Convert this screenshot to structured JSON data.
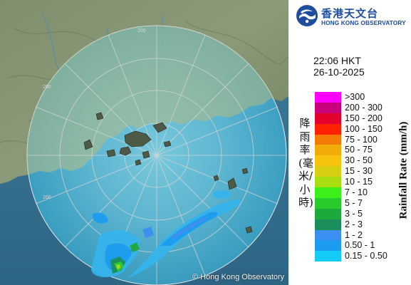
{
  "logo": {
    "name_zh": "香港天文台",
    "name_en": "HONG KONG OBSERVATORY",
    "brand_color": "#1e4da0"
  },
  "timestamp": {
    "time": "22:06 HKT",
    "date": "26-10-2025"
  },
  "legend": {
    "title_zh": "降雨率(毫米/小時)",
    "title_en": "Rainfall Rate (mm/h)",
    "items": [
      {
        "label": ">300",
        "color": "#ff00ff"
      },
      {
        "label": "200 - 300",
        "color": "#c8007c"
      },
      {
        "label": "150 - 200",
        "color": "#e4002d"
      },
      {
        "label": "100 - 150",
        "color": "#ff2200"
      },
      {
        "label": "75 - 100",
        "color": "#f37a05"
      },
      {
        "label": "50 - 75",
        "color": "#f1ac0a"
      },
      {
        "label": "30 - 50",
        "color": "#f7c30d"
      },
      {
        "label": "15 - 30",
        "color": "#d9cf12"
      },
      {
        "label": "10 - 15",
        "color": "#a8de10"
      },
      {
        "label": "7 - 10",
        "color": "#3cf01a"
      },
      {
        "label": "5 - 7",
        "color": "#27cc2b"
      },
      {
        "label": "3 - 5",
        "color": "#1caa3d"
      },
      {
        "label": "2 - 3",
        "color": "#1a8f5c"
      },
      {
        "label": "1 - 2",
        "color": "#3b8ff0"
      },
      {
        "label": "0.50 - 1",
        "color": "#1c9cf0"
      },
      {
        "label": "0.15 - 0.50",
        "color": "#14cbf5"
      }
    ]
  },
  "map": {
    "range_ring_labels": [
      "200",
      "200",
      "200"
    ],
    "copyright": "© Hong Kong Observatory"
  }
}
